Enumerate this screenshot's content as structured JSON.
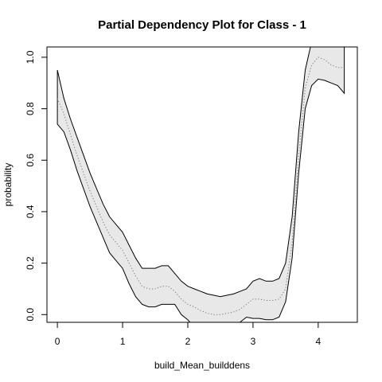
{
  "chart_data": {
    "type": "line",
    "title": "Partial Dependency Plot for Class - 1",
    "xlabel": "build_Mean_builddens",
    "ylabel": "probability",
    "xlim": [
      -0.16,
      4.6
    ],
    "ylim": [
      -0.03,
      1.04
    ],
    "x_ticks": [
      0,
      1,
      2,
      3,
      4
    ],
    "y_ticks": [
      0.0,
      0.2,
      0.4,
      0.6,
      0.8,
      1.0
    ],
    "x_tick_labels": [
      "0",
      "1",
      "2",
      "3",
      "4"
    ],
    "y_tick_labels": [
      "0.0",
      "0.2",
      "0.4",
      "0.6",
      "0.8",
      "1.0"
    ],
    "grid": false,
    "legend": "none",
    "x": [
      0,
      0.1,
      0.2,
      0.3,
      0.4,
      0.5,
      0.6,
      0.7,
      0.8,
      0.9,
      1.0,
      1.1,
      1.2,
      1.3,
      1.4,
      1.5,
      1.6,
      1.7,
      1.8,
      1.9,
      2.0,
      2.1,
      2.2,
      2.3,
      2.4,
      2.5,
      2.6,
      2.7,
      2.8,
      2.9,
      3.0,
      3.1,
      3.2,
      3.3,
      3.4,
      3.5,
      3.6,
      3.7,
      3.8,
      3.9,
      4.0,
      4.1,
      4.2,
      4.3,
      4.4
    ],
    "series": [
      {
        "role": "upper",
        "values": [
          0.95,
          0.84,
          0.76,
          0.69,
          0.62,
          0.55,
          0.49,
          0.43,
          0.38,
          0.35,
          0.32,
          0.27,
          0.22,
          0.18,
          0.18,
          0.18,
          0.19,
          0.19,
          0.16,
          0.13,
          0.11,
          0.1,
          0.09,
          0.08,
          0.075,
          0.07,
          0.075,
          0.08,
          0.09,
          0.1,
          0.13,
          0.14,
          0.13,
          0.13,
          0.14,
          0.2,
          0.38,
          0.71,
          0.95,
          1.06,
          1.1,
          1.08,
          1.06,
          1.05,
          1.04
        ]
      },
      {
        "role": "mean",
        "values": [
          0.84,
          0.78,
          0.7,
          0.62,
          0.55,
          0.48,
          0.42,
          0.36,
          0.31,
          0.28,
          0.25,
          0.2,
          0.15,
          0.11,
          0.1,
          0.1,
          0.11,
          0.11,
          0.09,
          0.06,
          0.04,
          0.03,
          0.015,
          0.005,
          0.0,
          0.0,
          0.005,
          0.01,
          0.02,
          0.04,
          0.06,
          0.06,
          0.055,
          0.055,
          0.06,
          0.1,
          0.28,
          0.62,
          0.88,
          0.97,
          1.0,
          0.99,
          0.97,
          0.96,
          0.96
        ]
      },
      {
        "role": "lower",
        "values": [
          0.74,
          0.71,
          0.64,
          0.56,
          0.49,
          0.42,
          0.36,
          0.3,
          0.24,
          0.21,
          0.18,
          0.12,
          0.07,
          0.04,
          0.03,
          0.03,
          0.04,
          0.04,
          0.04,
          0.0,
          -0.02,
          -0.05,
          -0.08,
          -0.1,
          -0.1,
          -0.09,
          -0.07,
          -0.05,
          -0.03,
          -0.01,
          -0.015,
          -0.015,
          -0.02,
          -0.02,
          -0.01,
          0.05,
          0.22,
          0.55,
          0.8,
          0.89,
          0.915,
          0.91,
          0.9,
          0.89,
          0.86
        ]
      }
    ]
  }
}
